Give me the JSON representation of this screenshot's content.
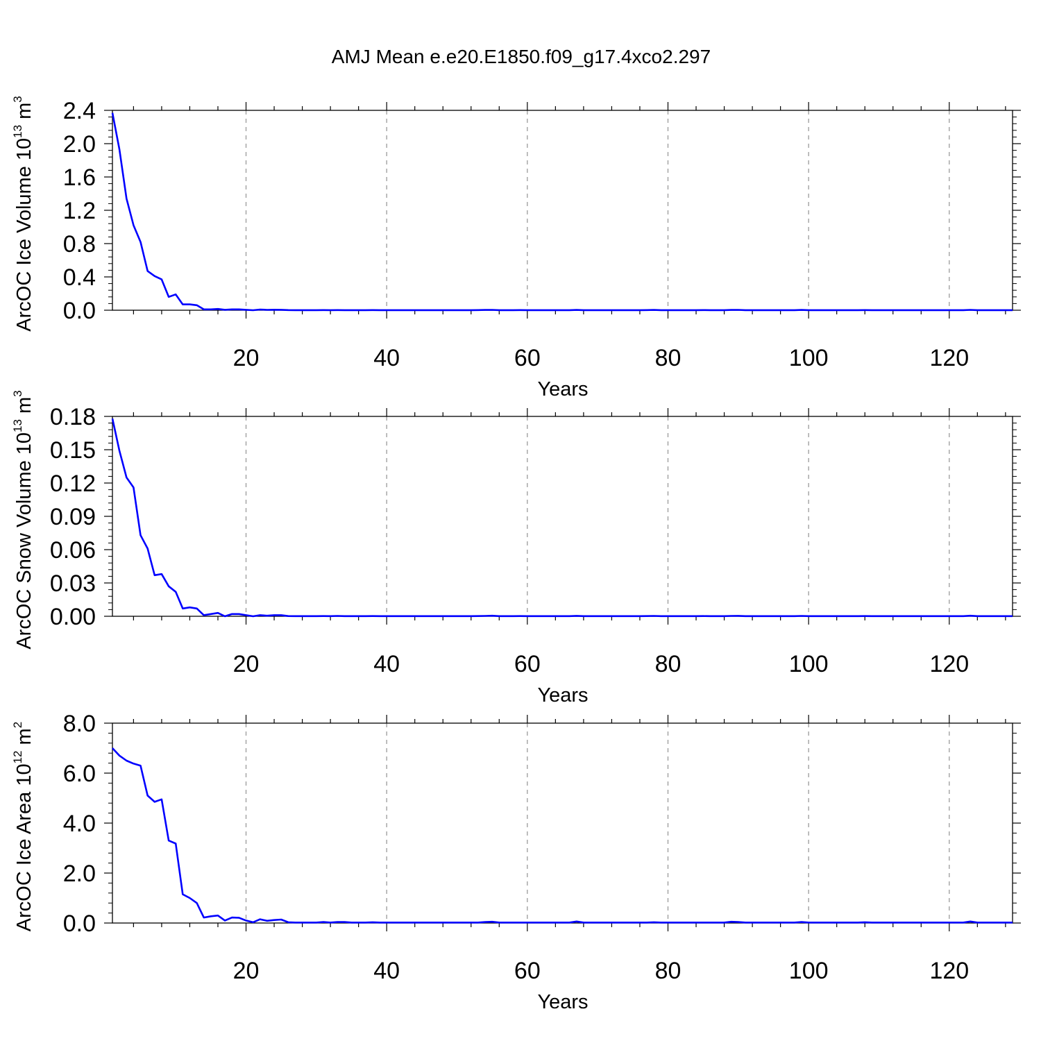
{
  "title": "AMJ Mean e.e20.E1850.f09_g17.4xco2.297",
  "style": {
    "line_color": "#0000ff",
    "grid_color": "#9a9a9a",
    "axis_color": "#000000"
  },
  "chart_data": [
    {
      "type": "line",
      "xlabel": "Years",
      "ylabel": {
        "main": "ArcOC Ice Volume 10",
        "sup": "13",
        "unit": " m",
        "unit_sup": "3"
      },
      "xlim": [
        1,
        129
      ],
      "ylim": [
        0,
        2.4
      ],
      "x_ticks": [
        20,
        40,
        60,
        80,
        100,
        120
      ],
      "x_tick_labels": [
        "20",
        "40",
        "60",
        "80",
        "100",
        "120"
      ],
      "y_ticks": [
        0,
        0.4,
        0.8,
        1.2,
        1.6,
        2.0,
        2.4
      ],
      "y_tick_labels": [
        "0.0",
        "0.4",
        "0.8",
        "1.2",
        "1.6",
        "2.0",
        "2.4"
      ],
      "grid": "vertical dashed at major x ticks",
      "series": [
        {
          "x": [
            1,
            2,
            3,
            4,
            5,
            6,
            7,
            8,
            9,
            10,
            11,
            12,
            13,
            14,
            15,
            16,
            17,
            18,
            19,
            20,
            21,
            22,
            23,
            24,
            25,
            26,
            27,
            28,
            29,
            30,
            31,
            32,
            33,
            34,
            35,
            36,
            37,
            38,
            39,
            40,
            41,
            42,
            43,
            44,
            45,
            46,
            47,
            48,
            49,
            50,
            51,
            52,
            53,
            54,
            55,
            56,
            57,
            58,
            59,
            60,
            61,
            62,
            63,
            64,
            65,
            66,
            67,
            68,
            69,
            70,
            71,
            72,
            73,
            74,
            75,
            76,
            77,
            78,
            79,
            80,
            81,
            82,
            83,
            84,
            85,
            86,
            87,
            88,
            89,
            90,
            91,
            92,
            93,
            94,
            95,
            96,
            97,
            98,
            99,
            100,
            101,
            102,
            103,
            104,
            105,
            106,
            107,
            108,
            109,
            110,
            111,
            112,
            113,
            114,
            115,
            116,
            117,
            118,
            119,
            120,
            121,
            122,
            123,
            124,
            125,
            126,
            127,
            128,
            129
          ],
          "y": [
            2.37,
            1.93,
            1.34,
            1.02,
            0.82,
            0.47,
            0.41,
            0.37,
            0.16,
            0.19,
            0.07,
            0.07,
            0.06,
            0.01,
            0.01,
            0.015,
            0.005,
            0.01,
            0.01,
            0.005,
            0.0,
            0.008,
            0.004,
            0.006,
            0.005,
            0.002,
            0.001,
            0.001,
            0.001,
            0.001,
            0.002,
            0.001,
            0.002,
            0.001,
            0.001,
            0.001,
            0.001,
            0.002,
            0.001,
            0.001,
            0.001,
            0.001,
            0.001,
            0.001,
            0.001,
            0.001,
            0.001,
            0.001,
            0.001,
            0.001,
            0.001,
            0.001,
            0.002,
            0.003,
            0.004,
            0.001,
            0.001,
            0.001,
            0.002,
            0.001,
            0.001,
            0.001,
            0.001,
            0.001,
            0.001,
            0.001,
            0.003,
            0.001,
            0.001,
            0.001,
            0.001,
            0.001,
            0.001,
            0.001,
            0.001,
            0.001,
            0.002,
            0.003,
            0.001,
            0.001,
            0.001,
            0.001,
            0.001,
            0.001,
            0.002,
            0.001,
            0.001,
            0.001,
            0.003,
            0.004,
            0.001,
            0.001,
            0.001,
            0.001,
            0.001,
            0.001,
            0.001,
            0.001,
            0.003,
            0.001,
            0.001,
            0.001,
            0.001,
            0.001,
            0.001,
            0.001,
            0.001,
            0.002,
            0.001,
            0.001,
            0.001,
            0.001,
            0.001,
            0.001,
            0.001,
            0.001,
            0.001,
            0.001,
            0.001,
            0.001,
            0.001,
            0.001,
            0.004,
            0.001,
            0.001,
            0.001,
            0.001,
            0.001,
            0.001
          ]
        }
      ]
    },
    {
      "type": "line",
      "xlabel": "Years",
      "ylabel": {
        "main": "ArcOC Snow Volume 10",
        "sup": "13",
        "unit": " m",
        "unit_sup": "3"
      },
      "xlim": [
        1,
        129
      ],
      "ylim": [
        0,
        0.18
      ],
      "x_ticks": [
        20,
        40,
        60,
        80,
        100,
        120
      ],
      "x_tick_labels": [
        "20",
        "40",
        "60",
        "80",
        "100",
        "120"
      ],
      "y_ticks": [
        0,
        0.03,
        0.06,
        0.09,
        0.12,
        0.15,
        0.18
      ],
      "y_tick_labels": [
        "0.00",
        "0.03",
        "0.06",
        "0.09",
        "0.12",
        "0.15",
        "0.18"
      ],
      "grid": "vertical dashed at major x ticks",
      "series": [
        {
          "x": [
            1,
            2,
            3,
            4,
            5,
            6,
            7,
            8,
            9,
            10,
            11,
            12,
            13,
            14,
            15,
            16,
            17,
            18,
            19,
            20,
            21,
            22,
            23,
            24,
            25,
            26,
            27,
            28,
            29,
            30,
            31,
            32,
            33,
            34,
            35,
            36,
            37,
            38,
            39,
            40,
            41,
            42,
            43,
            44,
            45,
            46,
            47,
            48,
            49,
            50,
            51,
            52,
            53,
            54,
            55,
            56,
            57,
            58,
            59,
            60,
            61,
            62,
            63,
            64,
            65,
            66,
            67,
            68,
            69,
            70,
            71,
            72,
            73,
            74,
            75,
            76,
            77,
            78,
            79,
            80,
            81,
            82,
            83,
            84,
            85,
            86,
            87,
            88,
            89,
            90,
            91,
            92,
            93,
            94,
            95,
            96,
            97,
            98,
            99,
            100,
            101,
            102,
            103,
            104,
            105,
            106,
            107,
            108,
            109,
            110,
            111,
            112,
            113,
            114,
            115,
            116,
            117,
            118,
            119,
            120,
            121,
            122,
            123,
            124,
            125,
            126,
            127,
            128,
            129
          ],
          "y": [
            0.178,
            0.149,
            0.125,
            0.116,
            0.073,
            0.061,
            0.037,
            0.038,
            0.027,
            0.022,
            0.007,
            0.008,
            0.007,
            0.001,
            0.002,
            0.003,
            0.0,
            0.002,
            0.002,
            0.001,
            0.0,
            0.001,
            0.0005,
            0.001,
            0.001,
            0.0002,
            0.0001,
            0.0001,
            0.0001,
            0.0001,
            0.0002,
            0.0001,
            0.0003,
            0.0001,
            0.0001,
            0.0001,
            0.0001,
            0.0002,
            0.0001,
            0.0001,
            0.0001,
            0.0001,
            0.0001,
            0.0001,
            0.0001,
            0.0001,
            0.0001,
            0.0001,
            0.0001,
            0.0001,
            0.0001,
            0.0001,
            0.0002,
            0.0003,
            0.0005,
            0.0001,
            0.0001,
            0.0001,
            0.0002,
            0.0001,
            0.0001,
            0.0001,
            0.0001,
            0.0001,
            0.0001,
            0.0001,
            0.0004,
            0.0001,
            0.0001,
            0.0001,
            0.0001,
            0.0001,
            0.0001,
            0.0001,
            0.0001,
            0.0001,
            0.0002,
            0.0003,
            0.0001,
            0.0001,
            0.0001,
            0.0001,
            0.0001,
            0.0001,
            0.0002,
            0.0001,
            0.0001,
            0.0001,
            0.0003,
            0.0004,
            0.0001,
            0.0001,
            0.0001,
            0.0001,
            0.0001,
            0.0001,
            0.0001,
            0.0001,
            0.0003,
            0.0001,
            0.0001,
            0.0001,
            0.0001,
            0.0001,
            0.0001,
            0.0001,
            0.0001,
            0.0002,
            0.0001,
            0.0001,
            0.0001,
            0.0001,
            0.0001,
            0.0001,
            0.0001,
            0.0001,
            0.0001,
            0.0001,
            0.0001,
            0.0001,
            0.0001,
            0.0001,
            0.0005,
            0.0001,
            0.0001,
            0.0001,
            0.0001,
            0.0001,
            0.0001
          ]
        }
      ]
    },
    {
      "type": "line",
      "xlabel": "Years",
      "ylabel": {
        "main": "ArcOC Ice Area 10",
        "sup": "12",
        "unit": " m",
        "unit_sup": "2"
      },
      "xlim": [
        1,
        129
      ],
      "ylim": [
        0,
        8.0
      ],
      "x_ticks": [
        20,
        40,
        60,
        80,
        100,
        120
      ],
      "x_tick_labels": [
        "20",
        "40",
        "60",
        "80",
        "100",
        "120"
      ],
      "y_ticks": [
        0,
        2,
        4,
        6,
        8
      ],
      "y_tick_labels": [
        "0.0",
        "2.0",
        "4.0",
        "6.0",
        "8.0"
      ],
      "grid": "vertical dashed at major x ticks",
      "series": [
        {
          "x": [
            1,
            2,
            3,
            4,
            5,
            6,
            7,
            8,
            9,
            10,
            11,
            12,
            13,
            14,
            15,
            16,
            17,
            18,
            19,
            20,
            21,
            22,
            23,
            24,
            25,
            26,
            27,
            28,
            29,
            30,
            31,
            32,
            33,
            34,
            35,
            36,
            37,
            38,
            39,
            40,
            41,
            42,
            43,
            44,
            45,
            46,
            47,
            48,
            49,
            50,
            51,
            52,
            53,
            54,
            55,
            56,
            57,
            58,
            59,
            60,
            61,
            62,
            63,
            64,
            65,
            66,
            67,
            68,
            69,
            70,
            71,
            72,
            73,
            74,
            75,
            76,
            77,
            78,
            79,
            80,
            81,
            82,
            83,
            84,
            85,
            86,
            87,
            88,
            89,
            90,
            91,
            92,
            93,
            94,
            95,
            96,
            97,
            98,
            99,
            100,
            101,
            102,
            103,
            104,
            105,
            106,
            107,
            108,
            109,
            110,
            111,
            112,
            113,
            114,
            115,
            116,
            117,
            118,
            119,
            120,
            121,
            122,
            123,
            124,
            125,
            126,
            127,
            128,
            129
          ],
          "y": [
            7.0,
            6.7,
            6.5,
            6.38,
            6.3,
            5.1,
            4.85,
            4.95,
            3.3,
            3.18,
            1.15,
            1.0,
            0.8,
            0.22,
            0.27,
            0.3,
            0.1,
            0.22,
            0.21,
            0.1,
            0.03,
            0.15,
            0.09,
            0.12,
            0.14,
            0.03,
            0.02,
            0.02,
            0.02,
            0.02,
            0.04,
            0.02,
            0.04,
            0.04,
            0.02,
            0.02,
            0.02,
            0.03,
            0.02,
            0.02,
            0.02,
            0.02,
            0.02,
            0.02,
            0.02,
            0.02,
            0.02,
            0.02,
            0.02,
            0.02,
            0.02,
            0.02,
            0.02,
            0.04,
            0.05,
            0.02,
            0.02,
            0.02,
            0.02,
            0.02,
            0.02,
            0.02,
            0.02,
            0.02,
            0.02,
            0.02,
            0.06,
            0.02,
            0.02,
            0.02,
            0.02,
            0.02,
            0.02,
            0.02,
            0.02,
            0.02,
            0.02,
            0.03,
            0.02,
            0.02,
            0.02,
            0.02,
            0.02,
            0.02,
            0.02,
            0.02,
            0.02,
            0.02,
            0.05,
            0.04,
            0.02,
            0.02,
            0.02,
            0.02,
            0.02,
            0.02,
            0.02,
            0.02,
            0.04,
            0.02,
            0.02,
            0.02,
            0.02,
            0.02,
            0.02,
            0.02,
            0.02,
            0.03,
            0.02,
            0.02,
            0.02,
            0.02,
            0.02,
            0.02,
            0.02,
            0.02,
            0.02,
            0.02,
            0.02,
            0.02,
            0.02,
            0.02,
            0.06,
            0.02,
            0.02,
            0.02,
            0.02,
            0.02,
            0.02
          ]
        }
      ]
    }
  ]
}
